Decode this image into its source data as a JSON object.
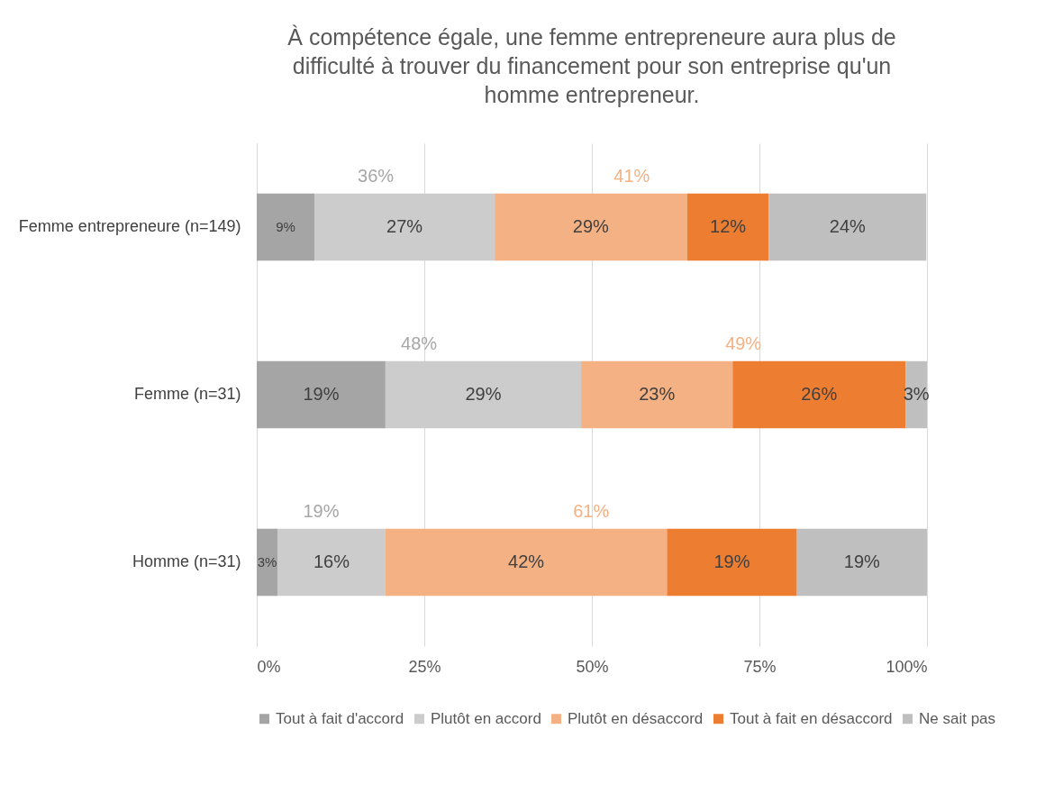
{
  "chart_data": {
    "type": "bar",
    "orientation": "horizontal",
    "stacked": true,
    "title": "À compétence égale, une femme entrepreneure aura plus de difficulté à trouver du financement pour son entreprise qu'un homme entrepreneur.",
    "categories": [
      "Femme entrepreneure (n=149)",
      "Femme (n=31)",
      "Homme (n=31)"
    ],
    "series": [
      {
        "name": "Tout à fait d'accord",
        "color": "#a5a5a5",
        "values": [
          8.6,
          19.2,
          3.1
        ],
        "value_labels": [
          "9%",
          "19%",
          "3%"
        ]
      },
      {
        "name": "Plutôt en accord",
        "color": "#cccccc",
        "values": [
          26.9,
          29.2,
          16.1
        ],
        "value_labels": [
          "27%",
          "29%",
          "16%"
        ]
      },
      {
        "name": "Plutôt en désaccord",
        "color": "#f4b183",
        "values": [
          28.7,
          22.6,
          42.0
        ],
        "value_labels": [
          "29%",
          "23%",
          "42%"
        ]
      },
      {
        "name": "Tout à fait en désaccord",
        "color": "#ed7d31",
        "values": [
          12.2,
          25.8,
          19.4
        ],
        "value_labels": [
          "12%",
          "26%",
          "19%"
        ]
      },
      {
        "name": "Ne sait pas",
        "color": "#bfbfbf",
        "values": [
          23.5,
          3.2,
          19.4
        ],
        "value_labels": [
          "24%",
          "3%",
          "19%"
        ]
      }
    ],
    "annotations": [
      "36%",
      "41%",
      "48%",
      "49%",
      "19%",
      "61%"
    ],
    "xlim": [
      0,
      100
    ],
    "xticks": [
      {
        "value": 0,
        "label": "0%"
      },
      {
        "value": 25,
        "label": "25%"
      },
      {
        "value": 50,
        "label": "50%"
      },
      {
        "value": 75,
        "label": "75%"
      },
      {
        "value": 100,
        "label": "100%"
      }
    ],
    "grid": "x",
    "legend": "bottom"
  }
}
